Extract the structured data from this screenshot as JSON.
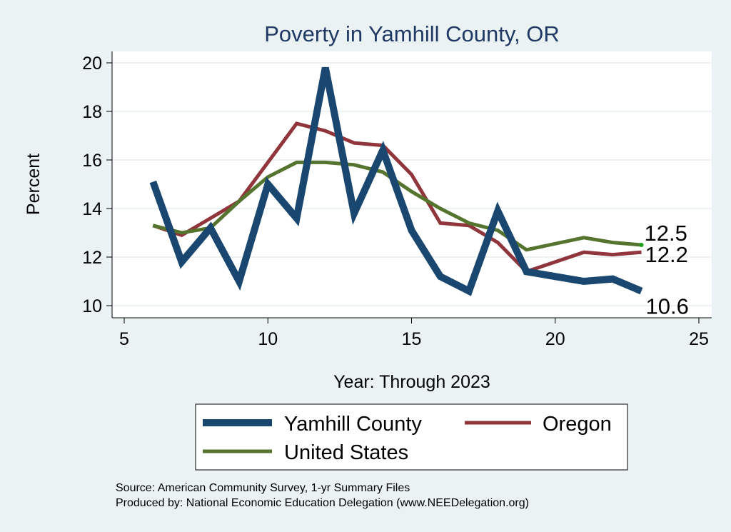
{
  "chart_data": {
    "type": "line",
    "title": "Poverty in Yamhill County, OR",
    "xlabel": "Year: Through 2023",
    "ylabel": "Percent",
    "xlim": [
      5,
      25
    ],
    "ylim": [
      10,
      20
    ],
    "xticks": [
      5,
      10,
      15,
      20,
      25
    ],
    "yticks": [
      10,
      12,
      14,
      16,
      18,
      20
    ],
    "grid": true,
    "legend_position": "bottom",
    "series": [
      {
        "name": "Yamhill County",
        "color": "#1a476f",
        "x": [
          6,
          7,
          8,
          9,
          10,
          11,
          12,
          13,
          14,
          15,
          16,
          17,
          18,
          19,
          21,
          22,
          23
        ],
        "values": [
          15.1,
          11.8,
          13.2,
          11.0,
          15.0,
          13.6,
          19.8,
          13.8,
          16.4,
          13.1,
          11.2,
          10.6,
          13.9,
          11.4,
          11.0,
          11.1,
          10.6
        ],
        "end_label": "10.6"
      },
      {
        "name": "Oregon",
        "color": "#90353b",
        "x": [
          6,
          7,
          8,
          9,
          10,
          11,
          12,
          13,
          14,
          15,
          16,
          17,
          18,
          19,
          21,
          22,
          23
        ],
        "values": [
          13.3,
          12.9,
          13.6,
          14.3,
          15.9,
          17.5,
          17.2,
          16.7,
          16.6,
          15.4,
          13.4,
          13.3,
          12.6,
          11.4,
          12.2,
          12.1,
          12.2
        ],
        "end_label": "12.2"
      },
      {
        "name": "United States",
        "color": "#55752f",
        "x": [
          6,
          7,
          8,
          9,
          10,
          11,
          12,
          13,
          14,
          15,
          16,
          17,
          18,
          19,
          21,
          22,
          23
        ],
        "values": [
          13.3,
          13.0,
          13.2,
          14.3,
          15.3,
          15.9,
          15.9,
          15.8,
          15.5,
          14.7,
          14.0,
          13.4,
          13.1,
          12.3,
          12.8,
          12.6,
          12.5
        ],
        "end_label": "12.5"
      }
    ],
    "source_lines": [
      "Source: American Community Survey, 1-yr Summary Files",
      "Produced by: National Economic Education Delegation (www.NEEDelegation.org)"
    ]
  }
}
